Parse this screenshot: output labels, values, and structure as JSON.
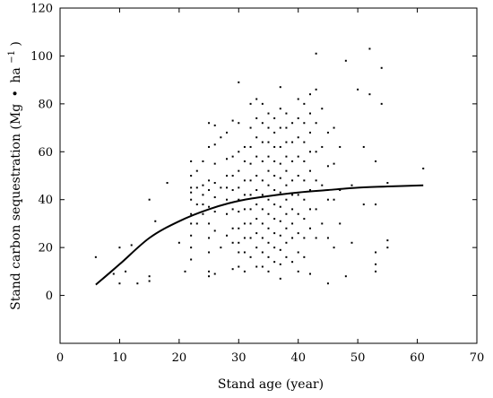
{
  "chart_data": {
    "type": "scatter",
    "title": "",
    "xlabel": "Stand age (year)",
    "ylabel_main": "Stand carbon sequestration (Mg",
    "ylabel_unit": "ha",
    "ylabel_sep": "•",
    "ylabel_exp": "−1",
    "ylabel_close": ")",
    "xlim": [
      0,
      70
    ],
    "ylim": [
      -20,
      120
    ],
    "xticks": [
      "0",
      "10",
      "20",
      "30",
      "40",
      "50",
      "60",
      "70"
    ],
    "yticks": [
      "0",
      "20",
      "40",
      "60",
      "80",
      "100",
      "120"
    ],
    "grid": false,
    "legend": "none",
    "series": [
      {
        "kind": "points",
        "x": [
          6,
          9,
          10,
          10,
          11,
          12,
          13,
          15,
          15,
          15,
          16,
          18,
          20,
          21,
          22,
          22,
          22,
          22,
          22,
          22,
          22,
          22,
          22,
          22,
          23,
          23,
          23,
          23,
          24,
          24,
          24,
          24,
          24,
          25,
          25,
          25,
          25,
          25,
          25,
          25,
          25,
          25,
          25,
          26,
          26,
          26,
          26,
          26,
          26,
          26,
          26,
          27,
          27,
          27,
          28,
          28,
          28,
          28,
          28,
          28,
          28,
          29,
          29,
          29,
          29,
          29,
          29,
          29,
          29,
          30,
          30,
          30,
          30,
          30,
          30,
          30,
          30,
          30,
          30,
          30,
          31,
          31,
          31,
          31,
          31,
          31,
          31,
          31,
          31,
          32,
          32,
          32,
          32,
          32,
          32,
          32,
          32,
          32,
          32,
          33,
          33,
          33,
          33,
          33,
          33,
          33,
          33,
          33,
          33,
          33,
          34,
          34,
          34,
          34,
          34,
          34,
          34,
          34,
          34,
          34,
          34,
          35,
          35,
          35,
          35,
          35,
          35,
          35,
          35,
          35,
          35,
          35,
          35,
          36,
          36,
          36,
          36,
          36,
          36,
          36,
          36,
          36,
          36,
          36,
          37,
          37,
          37,
          37,
          37,
          37,
          37,
          37,
          37,
          37,
          37,
          37,
          37,
          38,
          38,
          38,
          38,
          38,
          38,
          38,
          38,
          38,
          38,
          38,
          39,
          39,
          39,
          39,
          39,
          39,
          39,
          39,
          39,
          40,
          40,
          40,
          40,
          40,
          40,
          40,
          40,
          40,
          40,
          41,
          41,
          41,
          41,
          41,
          41,
          41,
          41,
          41,
          42,
          42,
          42,
          42,
          42,
          42,
          42,
          42,
          42,
          43,
          43,
          43,
          43,
          43,
          43,
          43,
          44,
          44,
          44,
          44,
          45,
          45,
          45,
          45,
          45,
          46,
          46,
          46,
          46,
          47,
          47,
          47,
          48,
          48,
          49,
          49,
          50,
          51,
          51,
          52,
          52,
          53,
          53,
          53,
          53,
          53,
          54,
          54,
          55,
          55,
          55,
          61
        ],
        "y": [
          16,
          9,
          5,
          20,
          10,
          21,
          5,
          40,
          8,
          6,
          31,
          47,
          22,
          10,
          56,
          50,
          45,
          43,
          40,
          34,
          30,
          25,
          20,
          15,
          52,
          45,
          38,
          30,
          56,
          46,
          42,
          38,
          34,
          72,
          62,
          48,
          44,
          37,
          30,
          24,
          18,
          10,
          8,
          71,
          63,
          55,
          47,
          41,
          35,
          27,
          9,
          66,
          45,
          20,
          68,
          57,
          50,
          45,
          40,
          34,
          25,
          73,
          58,
          50,
          44,
          36,
          28,
          22,
          11,
          89,
          72,
          60,
          52,
          45,
          40,
          35,
          28,
          22,
          18,
          12,
          62,
          56,
          48,
          42,
          36,
          30,
          24,
          18,
          10,
          80,
          70,
          62,
          55,
          48,
          42,
          36,
          30,
          24,
          16,
          82,
          74,
          66,
          58,
          50,
          44,
          38,
          32,
          26,
          20,
          12,
          80,
          72,
          64,
          56,
          48,
          42,
          36,
          30,
          24,
          18,
          12,
          76,
          70,
          64,
          58,
          52,
          46,
          40,
          34,
          28,
          22,
          16,
          10,
          74,
          68,
          62,
          56,
          50,
          44,
          38,
          32,
          26,
          20,
          14,
          87,
          78,
          70,
          62,
          55,
          49,
          43,
          37,
          31,
          25,
          19,
          13,
          7,
          76,
          70,
          64,
          58,
          52,
          46,
          40,
          34,
          28,
          22,
          16,
          72,
          64,
          56,
          48,
          42,
          36,
          30,
          24,
          14,
          82,
          74,
          66,
          58,
          50,
          42,
          34,
          26,
          18,
          10,
          80,
          72,
          64,
          56,
          48,
          40,
          32,
          24,
          16,
          84,
          76,
          68,
          60,
          52,
          44,
          36,
          28,
          9,
          101,
          86,
          72,
          60,
          48,
          36,
          24,
          78,
          62,
          46,
          30,
          68,
          54,
          40,
          24,
          5,
          70,
          55,
          40,
          20,
          62,
          44,
          30,
          98,
          8,
          46,
          22,
          86,
          62,
          38,
          103,
          84,
          56,
          38,
          18,
          13,
          10,
          95,
          80,
          47,
          23,
          20,
          53
        ]
      },
      {
        "kind": "curve",
        "x": [
          6,
          10,
          15,
          20,
          25,
          30,
          35,
          40,
          45,
          50,
          55,
          61
        ],
        "y": [
          4.5,
          13,
          24,
          31,
          36,
          39.5,
          41.5,
          43,
          44,
          45,
          45.5,
          46
        ]
      }
    ]
  }
}
